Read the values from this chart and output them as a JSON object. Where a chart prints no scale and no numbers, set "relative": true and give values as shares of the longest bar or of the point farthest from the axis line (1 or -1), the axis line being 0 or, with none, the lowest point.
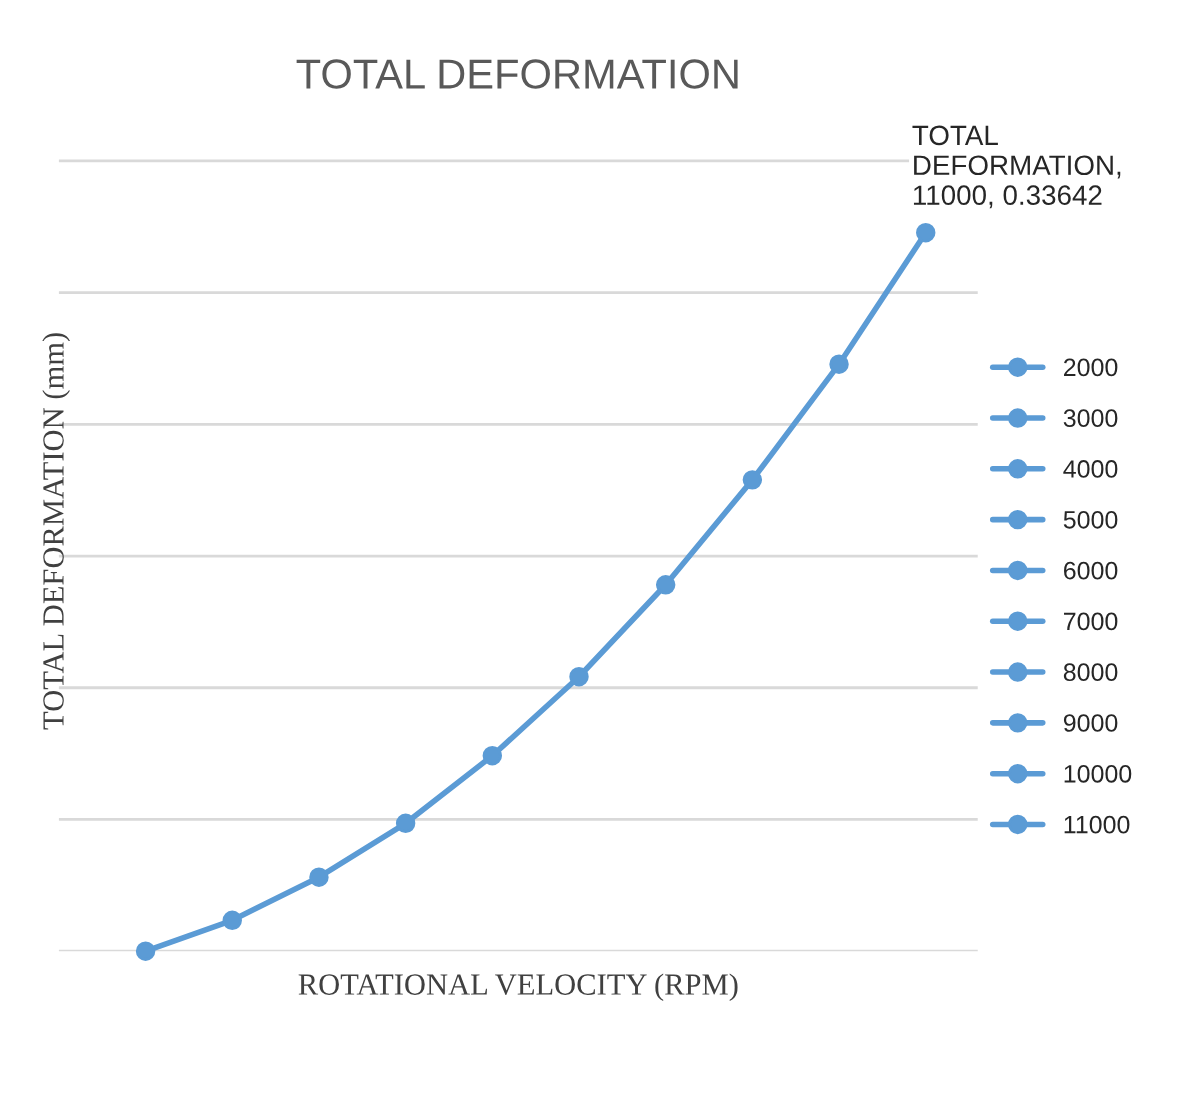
{
  "chart_data": {
    "type": "line",
    "title": "TOTAL DEFORMATION",
    "xlabel": "ROTATIONAL VELOCITY (RPM)",
    "ylabel": "TOTAL DEFORMATION (mm)",
    "relative": true,
    "categories": [
      null,
      null,
      null,
      null,
      null,
      null,
      null,
      null,
      null,
      null
    ],
    "series": [
      {
        "color": "#5b9bd5",
        "marker": "none",
        "values": [
          0,
          0.043,
          0.103,
          0.178,
          0.272,
          0.382,
          0.51,
          0.656,
          0.817,
          1
        ]
      },
      {
        "name": "2000",
        "color": "#5b9bd5",
        "marker": "circle",
        "values": [
          0,
          null,
          null,
          null,
          null,
          null,
          null,
          null,
          null,
          null
        ]
      },
      {
        "name": "3000",
        "color": "#5b9bd5",
        "marker": "circle",
        "values": [
          null,
          0.043,
          null,
          null,
          null,
          null,
          null,
          null,
          null,
          null
        ]
      },
      {
        "name": "4000",
        "color": "#5b9bd5",
        "marker": "circle",
        "values": [
          null,
          null,
          0.103,
          null,
          null,
          null,
          null,
          null,
          null,
          null
        ]
      },
      {
        "name": "5000",
        "color": "#5b9bd5",
        "marker": "circle",
        "values": [
          null,
          null,
          null,
          0.178,
          null,
          null,
          null,
          null,
          null,
          null
        ]
      },
      {
        "name": "6000",
        "color": "#5b9bd5",
        "marker": "circle",
        "values": [
          null,
          null,
          null,
          null,
          0.272,
          null,
          null,
          null,
          null,
          null
        ]
      },
      {
        "name": "7000",
        "color": "#5b9bd5",
        "marker": "circle",
        "values": [
          null,
          null,
          null,
          null,
          null,
          0.382,
          null,
          null,
          null,
          null
        ]
      },
      {
        "name": "8000",
        "color": "#5b9bd5",
        "marker": "circle",
        "values": [
          null,
          null,
          null,
          null,
          null,
          null,
          0.51,
          null,
          null,
          null
        ]
      },
      {
        "name": "9000",
        "color": "#5b9bd5",
        "marker": "circle",
        "values": [
          null,
          null,
          null,
          null,
          null,
          null,
          null,
          0.656,
          null,
          null
        ]
      },
      {
        "name": "10000",
        "color": "#5b9bd5",
        "marker": "circle",
        "values": [
          null,
          null,
          null,
          null,
          null,
          null,
          null,
          null,
          0.817,
          null
        ]
      },
      {
        "name": "11000",
        "color": "#5b9bd5",
        "marker": "circle",
        "values": [
          null,
          null,
          null,
          null,
          null,
          null,
          null,
          null,
          null,
          1
        ]
      }
    ],
    "annotations": [
      "TOTAL DEFORMATION, 11000, 0.33642"
    ],
    "grid": "y",
    "legend": "right",
    "line_style": "solid",
    "tick_labels": false
  }
}
